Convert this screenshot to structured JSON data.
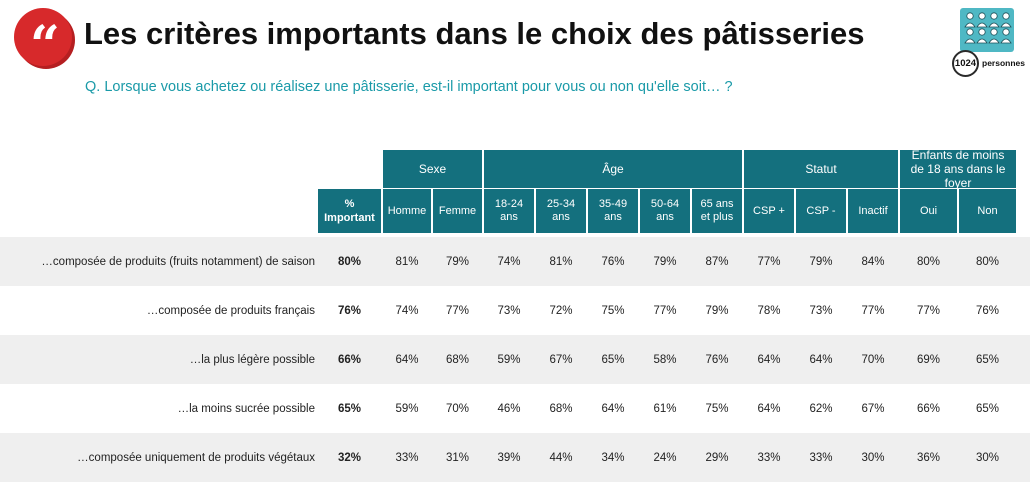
{
  "header": {
    "logo_glyph": "“",
    "title": "Les critères importants dans le choix des pâtisseries",
    "question": "Q. Lorsque vous achetez ou réalisez une pâtisserie, est-il important pour vous ou non qu'elle soit… ?",
    "respondents_count": "1024",
    "respondents_label": "personnes",
    "icon": "people-group-icon"
  },
  "colors": {
    "header_bg": "#14707e",
    "accent": "#1a9aa8",
    "logo": "#d7292b",
    "row_shade": "#efefef"
  },
  "table": {
    "important_header_line1": "%",
    "important_header_line2": "Important",
    "groups": [
      {
        "label": "Sexe"
      },
      {
        "label": "Âge"
      },
      {
        "label": "Statut"
      },
      {
        "label": "Enfants de moins de 18 ans dans le foyer"
      }
    ],
    "columns": [
      {
        "line1": "Homme",
        "line2": ""
      },
      {
        "line1": "Femme",
        "line2": ""
      },
      {
        "line1": "18-24",
        "line2": "ans"
      },
      {
        "line1": "25-34",
        "line2": "ans"
      },
      {
        "line1": "35-49",
        "line2": "ans"
      },
      {
        "line1": "50-64",
        "line2": "ans"
      },
      {
        "line1": "65 ans",
        "line2": "et plus"
      },
      {
        "line1": "CSP +",
        "line2": ""
      },
      {
        "line1": "CSP -",
        "line2": ""
      },
      {
        "line1": "Inactif",
        "line2": ""
      },
      {
        "line1": "Oui",
        "line2": ""
      },
      {
        "line1": "Non",
        "line2": ""
      }
    ],
    "rows": [
      {
        "label": "…composée de produits (fruits notamment) de saison",
        "important": "80%",
        "values": [
          "81%",
          "79%",
          "74%",
          "81%",
          "76%",
          "79%",
          "87%",
          "77%",
          "79%",
          "84%",
          "80%",
          "80%"
        ]
      },
      {
        "label": "…composée de produits français",
        "important": "76%",
        "values": [
          "74%",
          "77%",
          "73%",
          "72%",
          "75%",
          "77%",
          "79%",
          "78%",
          "73%",
          "77%",
          "77%",
          "76%"
        ]
      },
      {
        "label": "…la plus légère possible",
        "important": "66%",
        "values": [
          "64%",
          "68%",
          "59%",
          "67%",
          "65%",
          "58%",
          "76%",
          "64%",
          "64%",
          "70%",
          "69%",
          "65%"
        ]
      },
      {
        "label": "…la moins sucrée possible",
        "important": "65%",
        "values": [
          "59%",
          "70%",
          "46%",
          "68%",
          "64%",
          "61%",
          "75%",
          "64%",
          "62%",
          "67%",
          "66%",
          "65%"
        ]
      },
      {
        "label": "…composée uniquement de produits végétaux",
        "important": "32%",
        "values": [
          "33%",
          "31%",
          "39%",
          "44%",
          "34%",
          "24%",
          "29%",
          "33%",
          "33%",
          "30%",
          "36%",
          "30%"
        ]
      }
    ]
  }
}
